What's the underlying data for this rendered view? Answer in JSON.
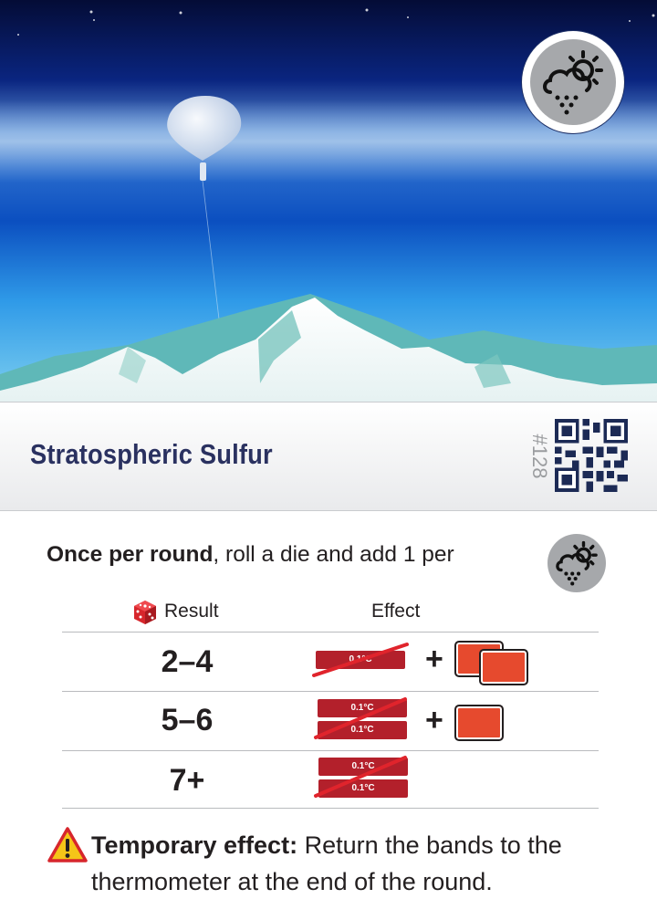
{
  "card": {
    "title": "Stratospheric Sulfur",
    "number": "#128",
    "top_icon": "weather-cloud-sun-icon",
    "intro_bold": "Once per round",
    "intro_rest": ", roll a die and add 1 per",
    "intro_icon": "weather-cloud-sun-icon",
    "columns": {
      "result": "Result",
      "effect": "Effect"
    },
    "rows": [
      {
        "result": "2–4",
        "band_label_top": "0.1°C",
        "band_label_bottom": "",
        "plus": "+",
        "chips": 2
      },
      {
        "result": "5–6",
        "band_label_top": "0.1°C",
        "band_label_bottom": "0.1°C",
        "plus": "+",
        "chips": 1
      },
      {
        "result": "7+",
        "band_label_top": "0.1°C",
        "band_label_bottom": "0.1°C",
        "plus": "",
        "chips": 0
      }
    ],
    "footer_bold": "Temporary effect:",
    "footer_rest": " Return the bands to the thermometer at the end of the round."
  },
  "colors": {
    "title": "#2a3160",
    "band_red": "#b3202b",
    "chip": "#e64a2e",
    "slash": "#e0242c",
    "icon_gray": "#a6a8ab"
  }
}
